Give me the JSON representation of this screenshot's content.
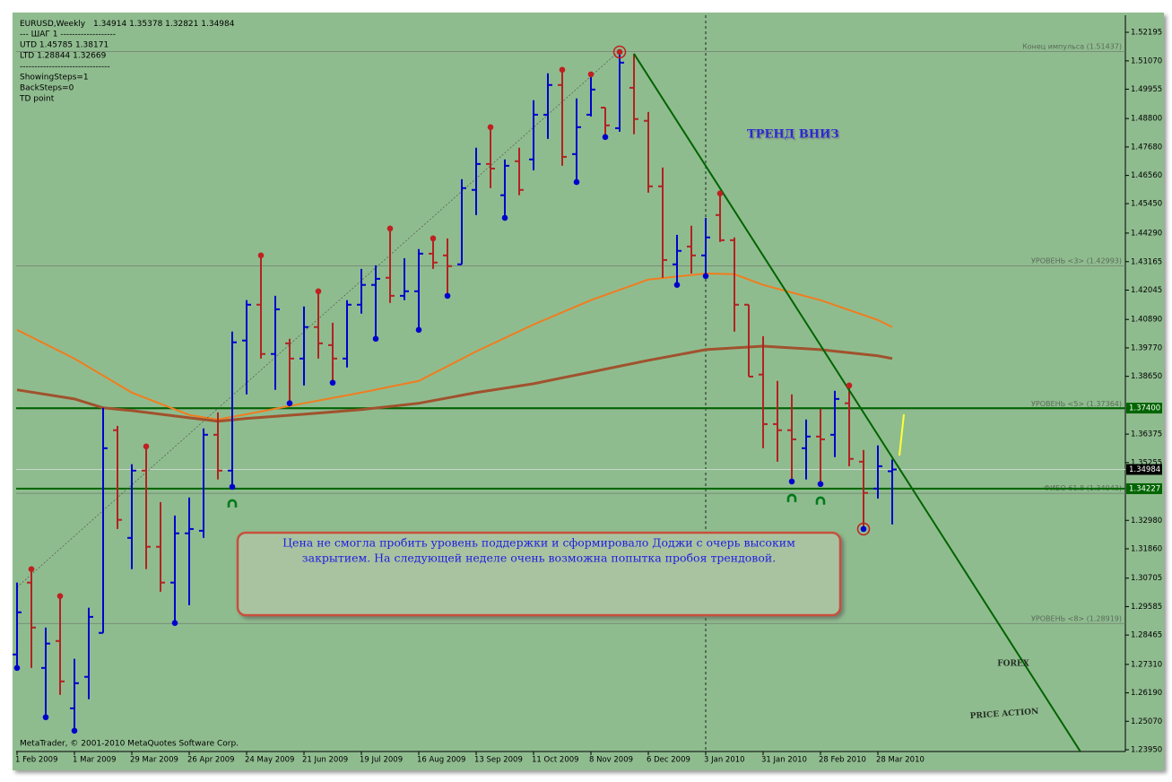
{
  "chart_data": {
    "type": "ohlc",
    "info": {
      "symbol": "EURUSD,Weekly",
      "lines": [
        "---   ШАГ 1    -------------------",
        "UTD 1.45785  1.38171",
        "LTD  1.28844  1.32669",
        "-------------------------------",
        "ShowingSteps=1",
        "BackSteps=0",
        "TD point"
      ]
    },
    "x": [
      "1 Feb 2009",
      null,
      null,
      null,
      "1 Mar 2009",
      null,
      null,
      null,
      "29 Mar 2009",
      null,
      null,
      null,
      "26 Apr 2009",
      null,
      null,
      null,
      "24 May 2009",
      null,
      null,
      null,
      "21 Jun 2009",
      null,
      null,
      null,
      "19 Jul 2009",
      null,
      null,
      null,
      "16 Aug 2009",
      null,
      null,
      null,
      "13 Sep 2009",
      null,
      null,
      null,
      "11 Oct 2009",
      null,
      null,
      null,
      "8 Nov 2009",
      null,
      null,
      null,
      "6 Dec 2009",
      null,
      null,
      null,
      "3 Jan 2010",
      null,
      null,
      null,
      "31 Jan 2010",
      null,
      null,
      null,
      "28 Feb 2010",
      null,
      null,
      null,
      "28 Mar 2010",
      null
    ],
    "open": [
      1.277,
      1.3053,
      1.2717,
      1.2823,
      1.2558,
      1.2682,
      1.2855,
      1.3653,
      1.3229,
      1.3494,
      1.3194,
      1.3053,
      1.3247,
      1.3257,
      1.3635,
      1.3494,
      1.4006,
      1.4147,
      1.3953,
      1.3995,
      1.3935,
      1.4059,
      1.3988,
      1.3935,
      1.4147,
      1.4225,
      1.4253,
      1.4182,
      1.42,
      1.4348,
      1.4341,
      1.4306,
      1.4599,
      1.4701,
      1.4578,
      1.4712,
      1.4719,
      1.4895,
      1.5012,
      1.474,
      1.4895,
      1.4923,
      1.4842,
      1.5001,
      1.4871,
      1.4613,
      1.4306,
      1.4376,
      1.4341,
      1.45,
      1.4401,
      1.4147,
      1.3872,
      1.3677,
      1.3653,
      1.3582,
      1.3628,
      1.3635,
      1.3759,
      1.3529,
      1.3423,
      1.34914
    ],
    "high": [
      1.3053,
      1.3106,
      1.2876,
      1.3,
      1.2753,
      1.2954,
      1.3741,
      1.367,
      1.3519,
      1.3589,
      1.337,
      1.3317,
      1.3388,
      1.366,
      1.3723,
      1.4041,
      1.4165,
      1.4341,
      1.4182,
      1.4013,
      1.414,
      1.42,
      1.4076,
      1.4165,
      1.4288,
      1.4302,
      1.4447,
      1.433,
      1.4366,
      1.4408,
      1.4408,
      1.4641,
      1.4765,
      1.4846,
      1.4719,
      1.4765,
      1.4952,
      1.5058,
      1.5072,
      1.4959,
      1.5054,
      1.4923,
      1.5142,
      1.5135,
      1.4906,
      1.4687,
      1.4422,
      1.4458,
      1.4489,
      1.4585,
      1.4412,
      1.4147,
      1.4023,
      1.3847,
      1.3794,
      1.3695,
      1.3737,
      1.3808,
      1.3829,
      1.3575,
      1.3593,
      1.35378
    ],
    "low": [
      1.2717,
      1.2717,
      1.2523,
      1.2611,
      1.247,
      1.2594,
      1.2855,
      1.3264,
      1.3106,
      1.3106,
      1.3017,
      1.2894,
      1.2964,
      1.3229,
      1.3459,
      1.343,
      1.3794,
      1.3935,
      1.3812,
      1.3759,
      1.3829,
      1.3935,
      1.384,
      1.39,
      1.4112,
      1.4013,
      1.4154,
      1.4165,
      1.4048,
      1.4288,
      1.4182,
      1.4306,
      1.45,
      1.4606,
      1.4489,
      1.4578,
      1.4676,
      1.48,
      1.4694,
      1.463,
      1.4888,
      1.4807,
      1.4828,
      1.4818,
      1.4588,
      1.4253,
      1.4225,
      1.427,
      1.426,
      1.4394,
      1.4041,
      1.3864,
      1.3582,
      1.3529,
      1.3451,
      1.3459,
      1.3441,
      1.3547,
      1.3511,
      1.3264,
      1.3384,
      1.32821
    ],
    "close": [
      1.2936,
      1.2876,
      1.2813,
      1.2664,
      1.2657,
      1.2918,
      1.3582,
      1.33,
      1.3494,
      1.3194,
      1.3053,
      1.3247,
      1.3264,
      1.3635,
      1.3494,
      1.3999,
      1.4147,
      1.3953,
      1.4129,
      1.3935,
      1.4059,
      1.3995,
      1.3935,
      1.4147,
      1.4225,
      1.4249,
      1.4182,
      1.42,
      1.4348,
      1.4313,
      1.4299,
      1.4606,
      1.4701,
      1.4683,
      1.4694,
      1.4599,
      1.4895,
      1.5012,
      1.4729,
      1.4846,
      1.4994,
      1.4853,
      1.51,
      1.4878,
      1.4613,
      1.4323,
      1.4359,
      1.4341,
      1.4412,
      1.4401,
      1.4147,
      1.3864,
      1.3677,
      1.3653,
      1.3617,
      1.3628,
      1.3617,
      1.3776,
      1.354,
      1.3406,
      1.3511,
      1.34984
    ],
    "up_color": "#0000cd",
    "down_color": "#b22222",
    "ylim": [
      1.2388,
      1.52831
    ],
    "yticks": [
      1.52195,
      {
        "value": 1.5107,
        "label": "1.51070"
      },
      1.49955,
      {
        "value": 1.488,
        "label": "1.48800"
      },
      {
        "value": 1.4768,
        "label": "1.47680"
      },
      {
        "value": 1.4656,
        "label": "1.46560"
      },
      {
        "value": 1.4545,
        "label": "1.45450"
      },
      {
        "value": 1.4429,
        "label": "1.44290"
      },
      1.43165,
      1.42045,
      {
        "value": 1.4089,
        "label": "1.40890"
      },
      {
        "value": 1.3977,
        "label": "1.39770"
      },
      {
        "value": 1.3865,
        "label": "1.38650"
      },
      1.36375,
      1.35255,
      {
        "value": 1.3298,
        "label": "1.32980"
      },
      {
        "value": 1.3186,
        "label": "1.31860"
      },
      1.30705,
      1.29585,
      1.28465,
      {
        "value": 1.2731,
        "label": "1.27310"
      },
      {
        "value": 1.2619,
        "label": "1.26190"
      },
      {
        "value": 1.2507,
        "label": "1.25070"
      },
      {
        "value": 1.2395,
        "label": "1.23950"
      }
    ],
    "price_marks": [
      {
        "value": 1.374,
        "label": "1.37400",
        "color": "#006400"
      },
      {
        "value": 1.34227,
        "label": "1.34227",
        "color": "#006400"
      }
    ],
    "levels": [
      {
        "name": "Конец импульса",
        "value": 1.51437,
        "value_label": "(1.51437)"
      },
      {
        "name": "УРОВЕНЬ <3>",
        "value": 1.42993,
        "value_label": "(1.42993)"
      },
      {
        "name": "УРОВЕНЬ <5>",
        "value": 1.37364,
        "value_label": "(1.37364)"
      },
      {
        "name": "ФИБО 61.8",
        "value": 1.34043,
        "value_label": "(1.34043)"
      },
      {
        "name": "УРОВЕНЬ <8>",
        "value": 1.28919,
        "value_label": "(1.28919)"
      }
    ],
    "moving_averages": [
      {
        "color": "#f07d1e",
        "x": [
          0,
          4,
          8,
          12,
          14,
          16,
          20,
          24,
          28,
          32,
          36,
          40,
          44,
          48,
          50,
          52,
          56,
          60,
          61
        ],
        "values": [
          1.4048,
          1.3935,
          1.3801,
          1.3713,
          1.3695,
          1.3716,
          1.3759,
          1.3801,
          1.3847,
          1.3963,
          1.4069,
          1.4165,
          1.4246,
          1.427,
          1.4267,
          1.4225,
          1.4165,
          1.4087,
          1.4059
        ]
      },
      {
        "color": "#a0522d",
        "x": [
          0,
          4,
          6,
          8,
          12,
          14,
          16,
          20,
          24,
          28,
          32,
          36,
          40,
          44,
          48,
          52,
          56,
          60,
          61
        ],
        "values": [
          1.3812,
          1.3776,
          1.3741,
          1.373,
          1.3702,
          1.3688,
          1.3699,
          1.3716,
          1.3734,
          1.3759,
          1.3801,
          1.3836,
          1.3882,
          1.3928,
          1.397,
          1.3984,
          1.397,
          1.3946,
          1.3935
        ]
      }
    ],
    "trendline": {
      "x": [
        43,
        74.1
      ],
      "values": [
        1.5135,
        1.2389
      ],
      "color": "#006400"
    },
    "guide_line": {
      "x": [
        0,
        41.9
      ],
      "values": [
        1.3035,
        1.5142
      ]
    },
    "fractal_highs": [
      1,
      3,
      9,
      17,
      21,
      26,
      29,
      33,
      38,
      40,
      42,
      49,
      58
    ],
    "fractal_lows": [
      0,
      2,
      4,
      11,
      15,
      19,
      22,
      25,
      28,
      30,
      34,
      39,
      41,
      46,
      48,
      54,
      56,
      59
    ],
    "circled_highs": [
      42
    ],
    "circled_lows": [
      59
    ],
    "signals": [
      15,
      54,
      56
    ],
    "annotation": "ТРЕНД ВНИЗ",
    "note": [
      "Цена не смогла пробить уровень поддержки и сформировало Доджи с очерь высоким",
      "закрытием. На следующей неделе очень возможна попытка пробоя трендовой."
    ],
    "watermark": [
      "FOREX",
      "PRICE ACTION"
    ],
    "copyright": "MetaTrader, © 2001-2010 MetaQuotes Software Corp."
  }
}
